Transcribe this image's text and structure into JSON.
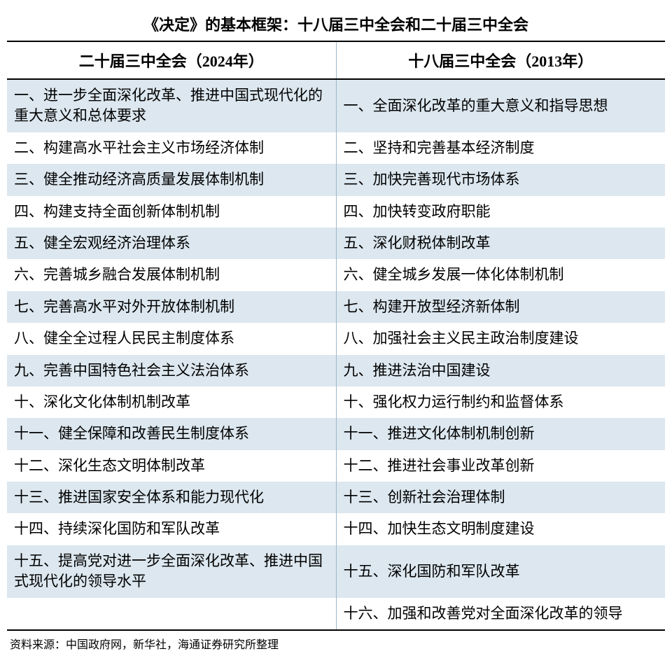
{
  "title": "《决定》的基本框架：十八届三中全会和二十届三中全会",
  "columns": {
    "left": "二十届三中全会（2024年）",
    "right": "十八届三中全会（2013年）"
  },
  "rows": [
    {
      "left": "一、进一步全面深化改革、推进中国式现代化的重大意义和总体要求",
      "right": "一、全面深化改革的重大意义和指导思想"
    },
    {
      "left": "二、构建高水平社会主义市场经济体制",
      "right": "二、坚持和完善基本经济制度"
    },
    {
      "left": "三、健全推动经济高质量发展体制机制",
      "right": "三、加快完善现代市场体系"
    },
    {
      "left": "四、构建支持全面创新体制机制",
      "right": "四、加快转变政府职能"
    },
    {
      "left": "五、健全宏观经济治理体系",
      "right": "五、深化财税体制改革"
    },
    {
      "left": "六、完善城乡融合发展体制机制",
      "right": "六、健全城乡发展一体化体制机制"
    },
    {
      "left": "七、完善高水平对外开放体制机制",
      "right": "七、构建开放型经济新体制"
    },
    {
      "left": "八、健全全过程人民民主制度体系",
      "right": "八、加强社会主义民主政治制度建设"
    },
    {
      "left": "九、完善中国特色社会主义法治体系",
      "right": "九、推进法治中国建设"
    },
    {
      "left": "十、深化文化体制机制改革",
      "right": "十、强化权力运行制约和监督体系"
    },
    {
      "left": "十一、健全保障和改善民生制度体系",
      "right": "十一、推进文化体制机制创新"
    },
    {
      "left": "十二、深化生态文明体制改革",
      "right": "十二、推进社会事业改革创新"
    },
    {
      "left": "十三、推进国家安全体系和能力现代化",
      "right": "十三、创新社会治理体制"
    },
    {
      "left": "十四、持续深化国防和军队改革",
      "right": "十四、加快生态文明制度建设"
    },
    {
      "left": "十五、提高党对进一步全面深化改革、推进中国式现代化的领导水平",
      "right": "十五、深化国防和军队改革"
    },
    {
      "left": "",
      "right": "十六、加强和改善党对全面深化改革的领导"
    }
  ],
  "source": "资料来源：中国政府网，新华社，海通证券研究所整理",
  "styling": {
    "title_fontsize": 22,
    "header_fontsize": 22,
    "cell_fontsize": 21,
    "source_fontsize": 16,
    "row_even_bg": "#dce7ef",
    "row_odd_bg": "#ffffff",
    "border_color": "#000000",
    "col_divider_color": "#9fb8cc",
    "text_color": "#000000",
    "font_family": "SimSun"
  }
}
